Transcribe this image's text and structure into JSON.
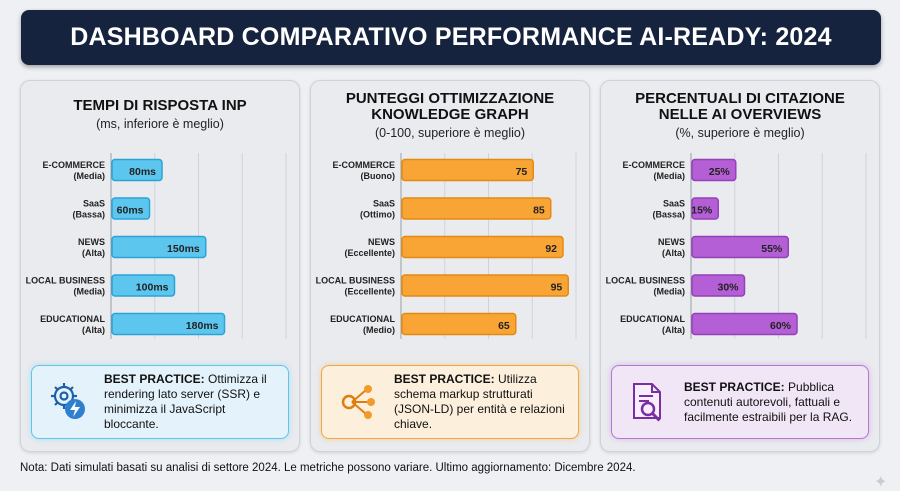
{
  "header": {
    "title": "DASHBOARD COMPARATIVO PERFORMANCE AI-READY: 2024"
  },
  "panels": [
    {
      "title_lines": [
        "TEMPI DI RISPOSTA INP"
      ],
      "subtitle": "(ms, inferiore è meglio)",
      "best_practice_label": "BEST PRACTICE:",
      "best_practice_text": "Ottimizza il rendering lato server (SSR) e minimizza il JavaScript bloccante.",
      "icon": "gear-lightning-icon",
      "bar_color": "#5cc6ef",
      "bar_border": "#2ba3d6",
      "box_bg": "#e4f3fb",
      "box_border": "#5cc6ef"
    },
    {
      "title_lines": [
        "PUNTEGGI OTTIMIZZAZIONE",
        "KNOWLEDGE GRAPH"
      ],
      "subtitle": "(0-100, superiore è meglio)",
      "best_practice_label": "BEST PRACTICE:",
      "best_practice_text": "Utilizza schema markup strutturati (JSON-LD) per entità e relazioni chiave.",
      "icon": "network-graph-icon",
      "bar_color": "#f9a536",
      "bar_border": "#e38a12",
      "box_bg": "#fcefdc",
      "box_border": "#f5a540"
    },
    {
      "title_lines": [
        "PERCENTUALI DI CITAZIONE",
        "NELLE AI OVERVIEWS"
      ],
      "subtitle": "(%, superiore è meglio)",
      "best_practice_label": "BEST PRACTICE:",
      "best_practice_text": "Pubblica contenuti autorevoli, fattuali e facilmente estraibili per la RAG.",
      "icon": "document-search-icon",
      "bar_color": "#b55fd6",
      "bar_border": "#9440b8",
      "box_bg": "#f1e6f6",
      "box_border": "#b874d6"
    }
  ],
  "chart_data": [
    {
      "type": "bar",
      "orientation": "horizontal",
      "title": "TEMPI DI RISPOSTA INP",
      "subtitle": "(ms, inferiore è meglio)",
      "categories": [
        [
          "E-COMMERCE",
          "(Media)"
        ],
        [
          "SaaS",
          "(Bassa)"
        ],
        [
          "NEWS",
          "(Alta)"
        ],
        [
          "LOCAL BUSINESS",
          "(Media)"
        ],
        [
          "EDUCATIONAL",
          "(Alta)"
        ]
      ],
      "values": [
        80,
        60,
        150,
        100,
        180
      ],
      "data_labels": [
        "80ms",
        "60ms",
        "150ms",
        "100ms",
        "180ms"
      ],
      "xlim": [
        0,
        280
      ],
      "grid": true
    },
    {
      "type": "bar",
      "orientation": "horizontal",
      "title": "PUNTEGGI OTTIMIZZAZIONE KNOWLEDGE GRAPH",
      "subtitle": "(0-100, superiore è meglio)",
      "categories": [
        [
          "E-COMMERCE",
          "(Buono)"
        ],
        [
          "SaaS",
          "(Ottimo)"
        ],
        [
          "NEWS",
          "(Eccellente)"
        ],
        [
          "LOCAL BUSINESS",
          "(Eccellente)"
        ],
        [
          "EDUCATIONAL",
          "(Medio)"
        ]
      ],
      "values": [
        75,
        85,
        92,
        95,
        65
      ],
      "data_labels": [
        "75",
        "85",
        "92",
        "95",
        "65"
      ],
      "xlim": [
        0,
        100
      ],
      "grid": true
    },
    {
      "type": "bar",
      "orientation": "horizontal",
      "title": "PERCENTUALI DI CITAZIONE NELLE AI OVERVIEWS",
      "subtitle": "(%, superiore è meglio)",
      "categories": [
        [
          "E-COMMERCE",
          "(Media)"
        ],
        [
          "SaaS",
          "(Bassa)"
        ],
        [
          "NEWS",
          "(Alta)"
        ],
        [
          "LOCAL BUSINESS",
          "(Media)"
        ],
        [
          "EDUCATIONAL",
          "(Alta)"
        ]
      ],
      "values": [
        25,
        15,
        55,
        30,
        60
      ],
      "data_labels": [
        "25%",
        "15%",
        "55%",
        "30%",
        "60%"
      ],
      "xlim": [
        0,
        100
      ],
      "grid": true
    }
  ],
  "footer": {
    "note": "Nota: Dati simulati basati su analisi di settore 2024. Le metriche possono variare. Ultimo aggiornamento: Dicembre 2024."
  },
  "decor": {
    "corner_icon": "sparkle-icon"
  }
}
